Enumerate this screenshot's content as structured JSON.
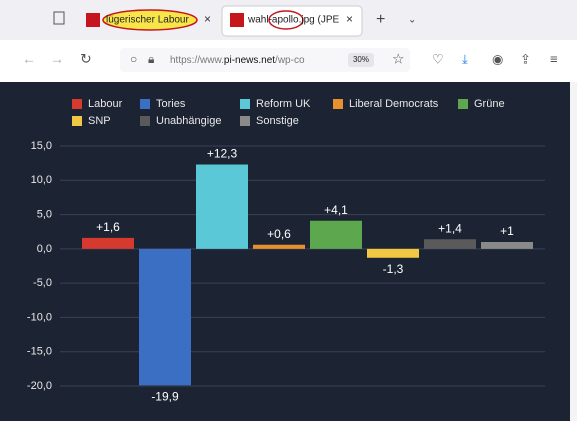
{
  "browser": {
    "tabs": [
      "lügerischer Labour",
      "wahl-apollo.jpg (JPE"
    ],
    "url_prefix": "https://www.",
    "url_domain": "pi-news.net",
    "url_rest": "/wp-co",
    "zoom": "30%"
  },
  "chart_data": {
    "type": "bar",
    "categories": [
      "Labour",
      "Tories",
      "Reform UK",
      "Liberal Democrats",
      "Grüne",
      "SNP",
      "Unabhängige",
      "Sonstige"
    ],
    "values": [
      1.6,
      -19.9,
      12.3,
      0.6,
      4.1,
      -1.3,
      1.4,
      1
    ],
    "value_labels": [
      "+1,6",
      "-19,9",
      "+12,3",
      "+0,6",
      "+4,1",
      "-1,3",
      "+1,4",
      "+1"
    ],
    "colors": [
      "#d63a2f",
      "#3a6fc4",
      "#5bc8d8",
      "#e8902e",
      "#5da84e",
      "#f2c744",
      "#5a5a5a",
      "#8a8a8a"
    ],
    "ylim": [
      -20,
      15
    ],
    "yticks": [
      {
        "value": -20,
        "label": "-20,0"
      },
      {
        "value": -15,
        "label": "-15,0"
      },
      {
        "value": -10,
        "label": "-10,0"
      },
      {
        "value": -5,
        "label": "-5,0"
      },
      {
        "value": 0,
        "label": "0,0"
      },
      {
        "value": 5,
        "label": "5,0"
      },
      {
        "value": 10,
        "label": "10,0"
      },
      {
        "value": 15,
        "label": "15,0"
      }
    ],
    "grid": true
  }
}
